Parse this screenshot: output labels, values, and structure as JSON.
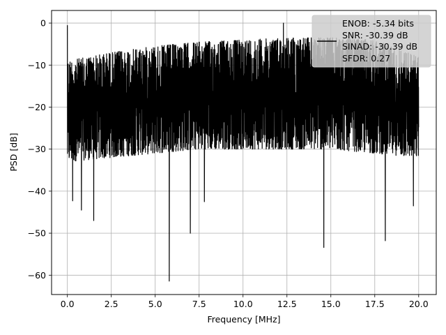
{
  "chart_data": {
    "type": "line",
    "title": "",
    "xlabel": "Frequency [MHz]",
    "ylabel": "PSD [dB]",
    "xlim": [
      -0.9,
      21.0
    ],
    "ylim": [
      -64.6,
      3.0
    ],
    "xticks": [
      0.0,
      2.5,
      5.0,
      7.5,
      10.0,
      12.5,
      15.0,
      17.5,
      20.0
    ],
    "xtick_labels": [
      "0.0",
      "2.5",
      "5.0",
      "7.5",
      "10.0",
      "12.5",
      "15.0",
      "17.5",
      "20.0"
    ],
    "yticks": [
      0,
      -10,
      -20,
      -30,
      -40,
      -50,
      -60
    ],
    "ytick_labels": [
      "0",
      "−10",
      "−20",
      "−30",
      "−40",
      "−50",
      "−60"
    ],
    "grid": true,
    "legend_position": "top-right",
    "line_color": "#000000",
    "legend_lines": [
      "ENOB: -5.34 bits",
      "SNR: -30.39 dB",
      "SINAD: -30.39 dB",
      "SFDR: 0.27"
    ],
    "series": [
      {
        "noise_band": {
          "x": [
            0.0,
            2.5,
            5.0,
            7.5,
            10.0,
            12.5,
            15.0,
            17.5,
            20.0
          ],
          "upper_db": [
            -9,
            -7,
            -5.5,
            -4.5,
            -4,
            -3.5,
            -3.5,
            -4,
            -8
          ],
          "lower_db": [
            -33,
            -32,
            -31,
            -30,
            -30,
            -30,
            -30,
            -31,
            -32
          ]
        },
        "notable_points": [
          {
            "x": 0.0,
            "y": -0.5
          },
          {
            "x": 0.3,
            "y": -42.3
          },
          {
            "x": 0.8,
            "y": -44.5
          },
          {
            "x": 1.5,
            "y": -47.0
          },
          {
            "x": 5.8,
            "y": -61.4
          },
          {
            "x": 7.0,
            "y": -50.0
          },
          {
            "x": 7.8,
            "y": -42.5
          },
          {
            "x": 12.3,
            "y": 0.0
          },
          {
            "x": 14.6,
            "y": -53.4
          },
          {
            "x": 18.1,
            "y": -51.8
          },
          {
            "x": 19.7,
            "y": -43.5
          }
        ]
      }
    ]
  }
}
